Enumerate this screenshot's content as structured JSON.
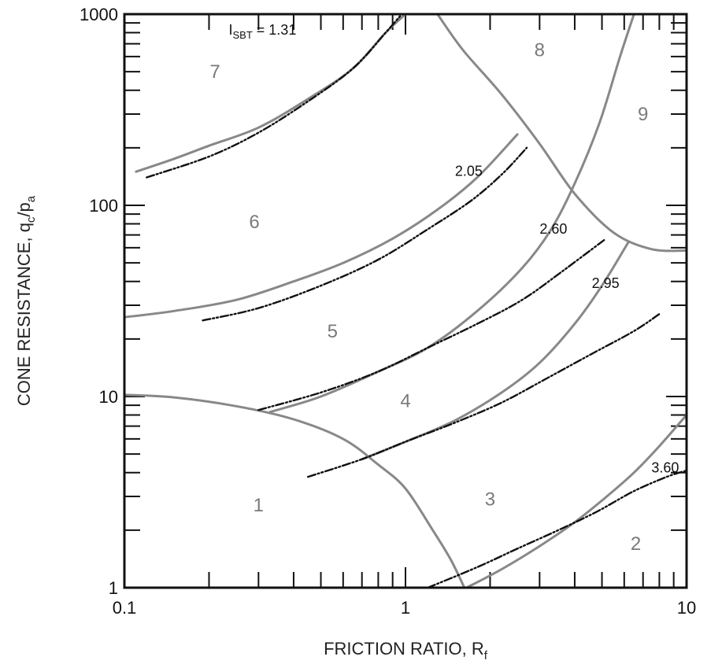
{
  "chart_data": {
    "type": "line",
    "xlabel": "FRICTION RATIO, R",
    "xlabel_sub": "f",
    "ylabel": "CONE RESISTANCE, q",
    "ylabel_sub1": "c",
    "ylabel_mid": "/p",
    "ylabel_sub2": "a",
    "x_scale": "log",
    "y_scale": "log",
    "xlim": [
      0.1,
      10
    ],
    "ylim": [
      1,
      1000
    ],
    "x_ticks": [
      {
        "value": 0.1,
        "label": "0.1"
      },
      {
        "value": 1,
        "label": "1"
      },
      {
        "value": 10,
        "label": "10"
      }
    ],
    "y_ticks": [
      {
        "value": 1,
        "label": "1"
      },
      {
        "value": 10,
        "label": "10"
      },
      {
        "value": 100,
        "label": "100"
      },
      {
        "value": 1000,
        "label": "1000"
      }
    ],
    "boundary_color": "#888888",
    "contour_color": "#111111",
    "zones": [
      {
        "label": "1",
        "x": 0.3,
        "y": 2.7
      },
      {
        "label": "2",
        "x": 6.6,
        "y": 1.7
      },
      {
        "label": "3",
        "x": 2.0,
        "y": 2.9
      },
      {
        "label": "4",
        "x": 1.0,
        "y": 9.5
      },
      {
        "label": "5",
        "x": 0.55,
        "y": 22
      },
      {
        "label": "6",
        "x": 0.29,
        "y": 82
      },
      {
        "label": "7",
        "x": 0.21,
        "y": 500
      },
      {
        "label": "8",
        "x": 3.0,
        "y": 650
      },
      {
        "label": "9",
        "x": 7.0,
        "y": 300
      }
    ],
    "boundaries": [
      {
        "points": [
          [
            0.11,
            150
          ],
          [
            0.15,
            175
          ],
          [
            0.2,
            205
          ],
          [
            0.3,
            255
          ],
          [
            0.45,
            360
          ],
          [
            0.65,
            520
          ],
          [
            0.85,
            800
          ],
          [
            1.0,
            1000
          ]
        ]
      },
      {
        "points": [
          [
            0.1,
            26
          ],
          [
            0.15,
            28
          ],
          [
            0.25,
            32
          ],
          [
            0.4,
            40
          ],
          [
            0.6,
            50
          ],
          [
            0.9,
            67
          ],
          [
            1.3,
            95
          ],
          [
            1.8,
            140
          ],
          [
            2.5,
            235
          ]
        ]
      },
      {
        "points": [
          [
            0.33,
            8.3
          ],
          [
            0.5,
            10
          ],
          [
            0.8,
            13.5
          ],
          [
            1.2,
            18
          ],
          [
            1.8,
            28
          ],
          [
            2.6,
            47
          ],
          [
            3.3,
            75
          ],
          [
            4.0,
            130
          ],
          [
            4.9,
            270
          ],
          [
            5.8,
            600
          ],
          [
            6.5,
            1000
          ]
        ]
      },
      {
        "points": [
          [
            0.7,
            4.7
          ],
          [
            1.0,
            5.8
          ],
          [
            1.5,
            7.5
          ],
          [
            2.2,
            10.5
          ],
          [
            3.0,
            15
          ],
          [
            4.0,
            24
          ],
          [
            5.0,
            38
          ],
          [
            6.2,
            64
          ]
        ]
      },
      {
        "points": [
          [
            1.65,
            1.0
          ],
          [
            2.2,
            1.25
          ],
          [
            3.0,
            1.65
          ],
          [
            4.0,
            2.2
          ],
          [
            5.2,
            3.0
          ],
          [
            6.5,
            4.0
          ],
          [
            8.0,
            5.5
          ],
          [
            10,
            8
          ]
        ]
      },
      {
        "points": [
          [
            0.1,
            10.2
          ],
          [
            0.15,
            9.9
          ],
          [
            0.25,
            8.9
          ],
          [
            0.4,
            7.6
          ],
          [
            0.6,
            6.0
          ],
          [
            0.8,
            4.4
          ],
          [
            1.0,
            3.3
          ],
          [
            1.25,
            2.0
          ],
          [
            1.45,
            1.4
          ],
          [
            1.62,
            1.0
          ]
        ]
      },
      {
        "points": [
          [
            1.3,
            1000
          ],
          [
            1.6,
            650
          ],
          [
            2.2,
            380
          ],
          [
            3.0,
            210
          ],
          [
            4.0,
            115
          ],
          [
            5.5,
            72
          ],
          [
            7.5,
            59
          ],
          [
            10,
            58
          ]
        ]
      }
    ],
    "contours": [
      {
        "name": "I_SBT = 1.31",
        "points": [
          [
            0.12,
            140
          ],
          [
            0.2,
            180
          ],
          [
            0.3,
            240
          ],
          [
            0.45,
            350
          ],
          [
            0.65,
            520
          ],
          [
            0.85,
            800
          ],
          [
            0.97,
            1000
          ]
        ]
      },
      {
        "name": "2.05",
        "points": [
          [
            0.19,
            25
          ],
          [
            0.3,
            29
          ],
          [
            0.5,
            38
          ],
          [
            0.8,
            52
          ],
          [
            1.2,
            75
          ],
          [
            1.7,
            105
          ],
          [
            2.2,
            145
          ],
          [
            2.7,
            200
          ]
        ]
      },
      {
        "name": "2.60",
        "points": [
          [
            0.3,
            8.5
          ],
          [
            0.5,
            10.5
          ],
          [
            0.8,
            13.5
          ],
          [
            1.2,
            18
          ],
          [
            1.8,
            24
          ],
          [
            2.6,
            32
          ],
          [
            3.6,
            45
          ],
          [
            5.1,
            66
          ]
        ]
      },
      {
        "name": "2.95",
        "points": [
          [
            0.45,
            3.8
          ],
          [
            0.7,
            4.7
          ],
          [
            1.0,
            5.8
          ],
          [
            1.5,
            7.3
          ],
          [
            2.2,
            9.3
          ],
          [
            3.2,
            12.5
          ],
          [
            4.7,
            17
          ],
          [
            6.5,
            22
          ],
          [
            8.0,
            27
          ]
        ]
      },
      {
        "name": "3.60",
        "points": [
          [
            1.2,
            1.0
          ],
          [
            1.8,
            1.28
          ],
          [
            2.5,
            1.6
          ],
          [
            3.5,
            2.0
          ],
          [
            4.8,
            2.5
          ],
          [
            6.5,
            3.2
          ],
          [
            8.5,
            3.8
          ],
          [
            10,
            4.1
          ]
        ]
      }
    ],
    "contour_labels": [
      {
        "prefix": "I",
        "sub": "SBT",
        "text": " = 1.31",
        "x": 0.235,
        "y": 780
      },
      {
        "prefix": "",
        "sub": "",
        "text": "2.05",
        "x": 1.5,
        "y": 143
      },
      {
        "prefix": "",
        "sub": "",
        "text": "2.60",
        "x": 3.0,
        "y": 71
      },
      {
        "prefix": "",
        "sub": "",
        "text": "2.95",
        "x": 4.6,
        "y": 37
      },
      {
        "prefix": "",
        "sub": "",
        "text": "3.60",
        "x": 7.5,
        "y": 4.0
      }
    ]
  }
}
